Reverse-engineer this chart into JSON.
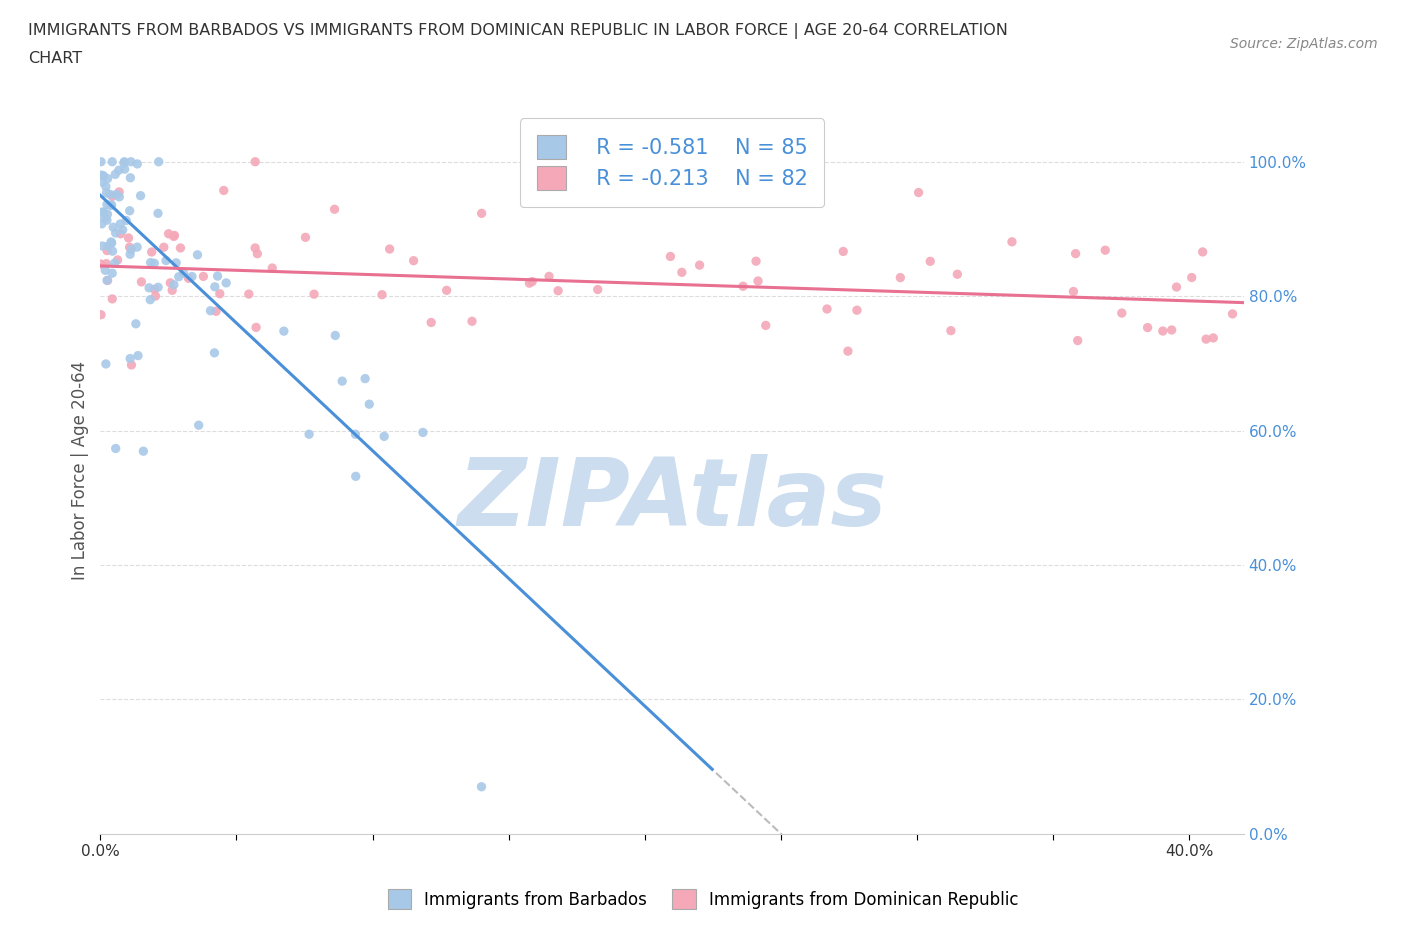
{
  "title_line1": "IMMIGRANTS FROM BARBADOS VS IMMIGRANTS FROM DOMINICAN REPUBLIC IN LABOR FORCE | AGE 20-64 CORRELATION",
  "title_line2": "CHART",
  "source_text": "Source: ZipAtlas.com",
  "ylabel": "In Labor Force | Age 20-64",
  "xlim": [
    0.0,
    0.42
  ],
  "ylim": [
    0.0,
    1.08
  ],
  "xtick_positions": [
    0.0,
    0.05,
    0.1,
    0.15,
    0.2,
    0.25,
    0.3,
    0.35,
    0.4
  ],
  "xtick_labels": [
    "0.0%",
    "",
    "",
    "",
    "",
    "",
    "",
    "",
    "40.0%"
  ],
  "ytick_positions": [
    0.0,
    0.2,
    0.4,
    0.6,
    0.8,
    1.0
  ],
  "ytick_labels_right": [
    "0.0%",
    "20.0%",
    "40.0%",
    "60.0%",
    "80.0%",
    "100.0%"
  ],
  "series1_color": "#a8c8e8",
  "series2_color": "#f4a8b8",
  "series1_name": "Immigrants from Barbados",
  "series2_name": "Immigrants from Dominican Republic",
  "series1_R": -0.581,
  "series1_N": 85,
  "series2_R": -0.213,
  "series2_N": 82,
  "trend1_color": "#4a90d9",
  "trend2_color": "#e87090",
  "trend1_dashed_color": "#aaaaaa",
  "watermark_text": "ZIPAtlas",
  "watermark_color": "#ccddf0",
  "grid_color": "#dddddd",
  "background_color": "#ffffff",
  "right_axis_color": "#4a90d9",
  "title_color": "#333333",
  "source_color": "#888888",
  "label_color": "#555555",
  "legend_label_color": "#4a90d9",
  "trend1_slope": -3.8,
  "trend1_intercept": 0.95,
  "trend2_slope": -0.13,
  "trend2_intercept": 0.845
}
